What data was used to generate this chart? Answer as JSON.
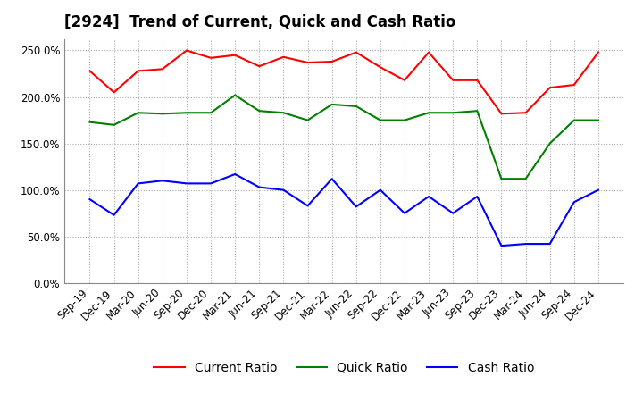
{
  "title": "[2924]  Trend of Current, Quick and Cash Ratio",
  "x_labels": [
    "Sep-19",
    "Dec-19",
    "Mar-20",
    "Jun-20",
    "Sep-20",
    "Dec-20",
    "Mar-21",
    "Jun-21",
    "Sep-21",
    "Dec-21",
    "Mar-22",
    "Jun-22",
    "Sep-22",
    "Dec-22",
    "Mar-23",
    "Jun-23",
    "Sep-23",
    "Dec-23",
    "Mar-24",
    "Jun-24",
    "Sep-24",
    "Dec-24"
  ],
  "current_ratio": [
    228,
    205,
    228,
    230,
    250,
    242,
    245,
    233,
    243,
    237,
    238,
    248,
    232,
    218,
    248,
    218,
    218,
    182,
    183,
    210,
    213,
    248
  ],
  "quick_ratio": [
    173,
    170,
    183,
    182,
    183,
    183,
    202,
    185,
    183,
    175,
    192,
    190,
    175,
    175,
    183,
    183,
    185,
    112,
    112,
    150,
    175,
    175
  ],
  "cash_ratio": [
    90,
    73,
    107,
    110,
    107,
    107,
    117,
    103,
    100,
    83,
    112,
    82,
    100,
    75,
    93,
    75,
    93,
    40,
    42,
    42,
    87,
    100
  ],
  "ylim": [
    0,
    262
  ],
  "yticks": [
    0,
    50,
    100,
    150,
    200,
    250
  ],
  "background_color": "#ffffff",
  "grid_color": "#aaaaaa",
  "current_color": "#ff0000",
  "quick_color": "#008000",
  "cash_color": "#0000ff",
  "title_fontsize": 12,
  "tick_fontsize": 8.5,
  "legend_fontsize": 10
}
